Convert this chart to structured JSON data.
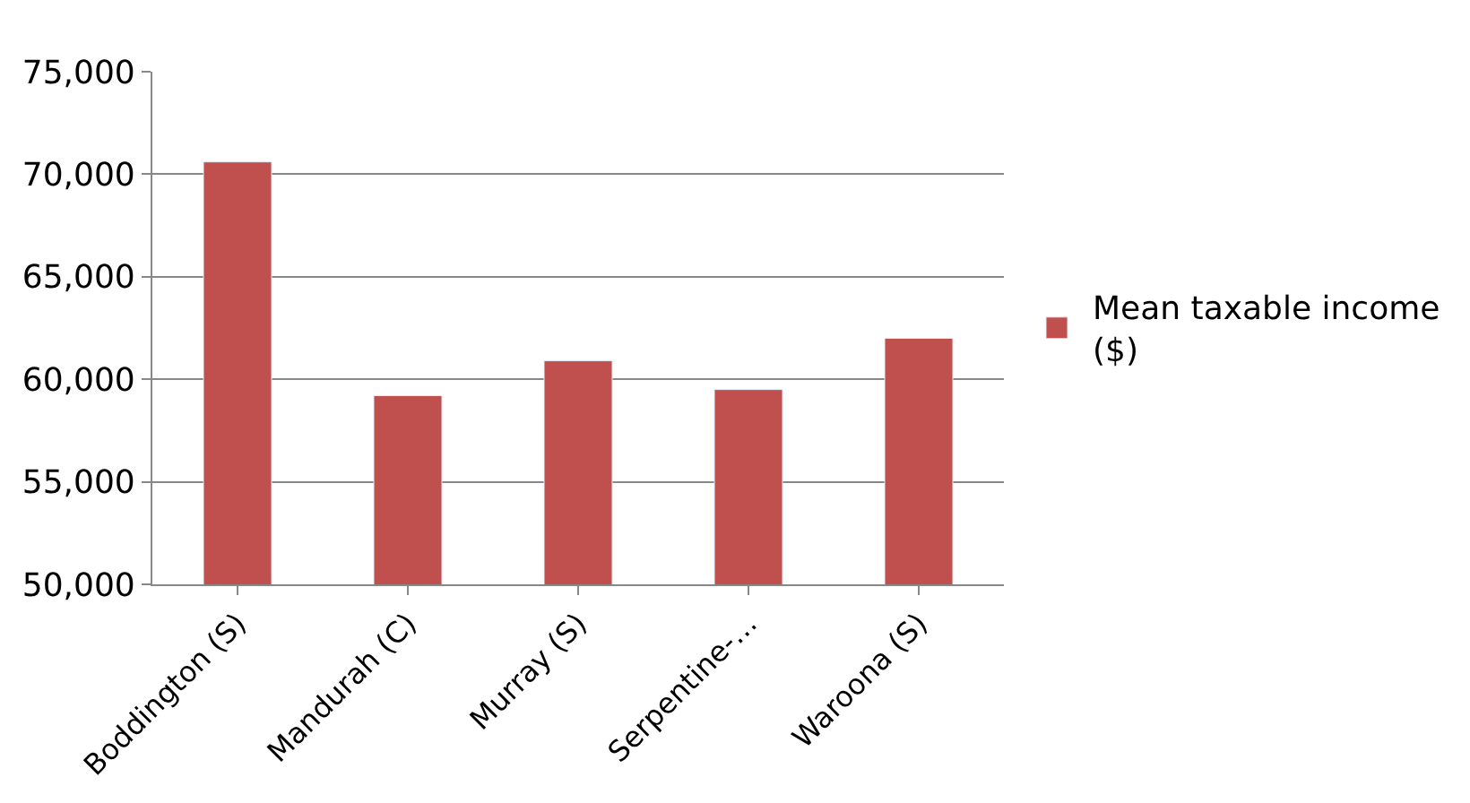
{
  "chart_data": {
    "type": "bar",
    "categories": [
      "Boddington (S)",
      "Mandurah (C)",
      "Murray (S)",
      "Serpentine-…",
      "Waroona (S)"
    ],
    "series": [
      {
        "name": "Mean taxable income ($)",
        "color": "#c0504d",
        "values": [
          70600,
          59200,
          60900,
          59500,
          62000
        ]
      }
    ],
    "ylim": [
      50000,
      75000
    ],
    "yticks": [
      {
        "value": 50000,
        "label": "50,000"
      },
      {
        "value": 55000,
        "label": "55,000"
      },
      {
        "value": 60000,
        "label": "60,000"
      },
      {
        "value": 65000,
        "label": "65,000"
      },
      {
        "value": 70000,
        "label": "70,000"
      },
      {
        "value": 75000,
        "label": "75,000"
      }
    ],
    "grid": "y",
    "legend": "right"
  }
}
